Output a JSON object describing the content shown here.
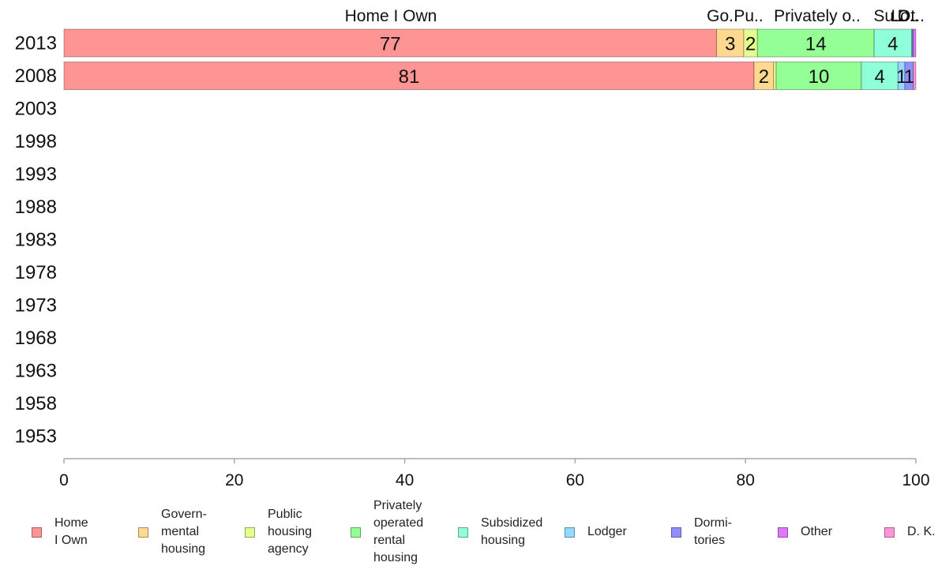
{
  "chart_data": {
    "type": "bar",
    "orientation": "horizontal",
    "stacked": true,
    "categories": [
      "2013",
      "2008",
      "2003",
      "1998",
      "1993",
      "1988",
      "1983",
      "1978",
      "1973",
      "1968",
      "1963",
      "1958",
      "1953"
    ],
    "xlim": [
      0,
      100
    ],
    "xticks": [
      "0",
      "20",
      "40",
      "60",
      "80",
      "100"
    ],
    "grid": false,
    "legend_position": "bottom",
    "series": [
      {
        "name": "Home I Own",
        "legend_label": "Home\nI Own",
        "color": "#ff9494",
        "values": [
          76.6,
          81.0,
          null,
          null,
          null,
          null,
          null,
          null,
          null,
          null,
          null,
          null,
          null
        ],
        "data_labels": [
          "77",
          "81"
        ]
      },
      {
        "name": "Govern-mental housing",
        "legend_label": "Govern-\nmental\n housing",
        "color": "#ffd98f",
        "values": [
          3.2,
          2.3,
          null,
          null,
          null,
          null,
          null,
          null,
          null,
          null,
          null,
          null,
          null
        ],
        "data_labels": [
          "3",
          "2"
        ]
      },
      {
        "name": "Public housing agency",
        "legend_label": "Public\nhousing\nagency",
        "color": "#e5ff8f",
        "values": [
          1.6,
          0.3,
          null,
          null,
          null,
          null,
          null,
          null,
          null,
          null,
          null,
          null,
          null
        ],
        "data_labels": [
          "2",
          ""
        ]
      },
      {
        "name": "Privately operated rental housing",
        "legend_label": "Privately\noperated\nrental\nhousing",
        "color": "#94ff94",
        "values": [
          13.7,
          10.0,
          null,
          null,
          null,
          null,
          null,
          null,
          null,
          null,
          null,
          null,
          null
        ],
        "data_labels": [
          "14",
          "10"
        ]
      },
      {
        "name": "Subsidized housing",
        "legend_label": "Subsidized\n housing",
        "color": "#8fffd9",
        "values": [
          4.4,
          4.3,
          null,
          null,
          null,
          null,
          null,
          null,
          null,
          null,
          null,
          null,
          null
        ],
        "data_labels": [
          "4",
          "4"
        ]
      },
      {
        "name": "Lodger",
        "legend_label": "Lodger",
        "color": "#94d9ff",
        "values": [
          0.1,
          0.8,
          null,
          null,
          null,
          null,
          null,
          null,
          null,
          null,
          null,
          null,
          null
        ],
        "data_labels": [
          "",
          "1"
        ]
      },
      {
        "name": "Dormi-tories",
        "legend_label": "Dormi-\ntories",
        "color": "#8f8fff",
        "values": [
          0.1,
          1.0,
          null,
          null,
          null,
          null,
          null,
          null,
          null,
          null,
          null,
          null,
          null
        ],
        "data_labels": [
          "",
          "1"
        ]
      },
      {
        "name": "Other",
        "legend_label": "Other",
        "color": "#df78ff",
        "values": [
          0.3,
          0.0,
          null,
          null,
          null,
          null,
          null,
          null,
          null,
          null,
          null,
          null,
          null
        ],
        "data_labels": [
          "",
          ""
        ]
      },
      {
        "name": "D. K.",
        "legend_label": "D. K.",
        "color": "#ff94d9",
        "values": [
          0.0,
          0.3,
          null,
          null,
          null,
          null,
          null,
          null,
          null,
          null,
          null,
          null,
          null
        ],
        "data_labels": [
          "",
          ""
        ]
      }
    ],
    "top_labels": [
      "Home I Own",
      "Go..",
      "Pu..",
      "Privately o..",
      "Su..",
      "Lo..",
      "D..",
      "Ot.."
    ]
  }
}
